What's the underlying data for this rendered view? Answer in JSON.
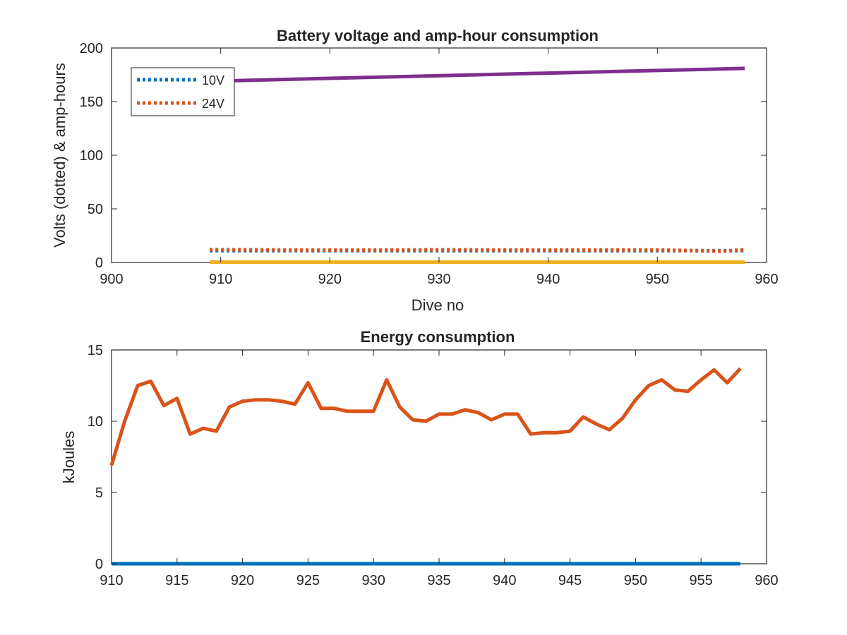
{
  "chart_data": [
    {
      "type": "line",
      "title": "Battery voltage and amp-hour consumption",
      "xlabel": "Dive no",
      "ylabel": "Volts (dotted) & amp-hours",
      "xlim": [
        900,
        960
      ],
      "ylim": [
        0,
        200
      ],
      "xticks": [
        900,
        910,
        920,
        930,
        940,
        950,
        960
      ],
      "yticks": [
        0,
        50,
        100,
        150,
        200
      ],
      "grid": false,
      "legend": "top-left",
      "series": [
        {
          "name": "10V",
          "style": "dotted",
          "color": "#0072BD",
          "x": [
            909,
            958
          ],
          "y": [
            11,
            11
          ]
        },
        {
          "name": "24V",
          "style": "dotted",
          "color": "#D95319",
          "x": [
            909,
            920,
            930,
            940,
            950,
            956,
            958
          ],
          "y": [
            12,
            11.5,
            11.8,
            11.6,
            11.7,
            10.5,
            12
          ]
        },
        {
          "style": "solid",
          "color": "#EDB120",
          "x": [
            909,
            958
          ],
          "y": [
            0.3,
            0.3
          ]
        },
        {
          "style": "solid",
          "color": "#7E2F8E",
          "x": [
            909,
            958
          ],
          "y": [
            169,
            181
          ]
        }
      ]
    },
    {
      "type": "line",
      "title": "Energy consumption",
      "xlabel": "",
      "ylabel": "kJoules",
      "xlim": [
        910,
        960
      ],
      "ylim": [
        0,
        15
      ],
      "xticks": [
        910,
        915,
        920,
        925,
        930,
        935,
        940,
        945,
        950,
        955,
        960
      ],
      "yticks": [
        0,
        5,
        10,
        15
      ],
      "grid": false,
      "series": [
        {
          "style": "solid",
          "color": "#0072BD",
          "x": [
            910,
            958
          ],
          "y": [
            0,
            0
          ]
        },
        {
          "style": "solid",
          "color": "#D95319",
          "x": [
            910,
            911,
            912,
            913,
            914,
            915,
            916,
            917,
            918,
            919,
            920,
            921,
            922,
            923,
            924,
            925,
            926,
            927,
            928,
            929,
            930,
            931,
            932,
            933,
            934,
            935,
            936,
            937,
            938,
            939,
            940,
            941,
            942,
            943,
            944,
            945,
            946,
            947,
            948,
            949,
            950,
            951,
            952,
            953,
            954,
            955,
            956,
            957,
            958
          ],
          "y": [
            6.9,
            10.0,
            12.5,
            12.8,
            11.1,
            11.6,
            9.1,
            9.5,
            9.3,
            11.0,
            11.4,
            11.5,
            11.5,
            11.4,
            11.2,
            12.7,
            10.9,
            10.9,
            10.7,
            10.7,
            10.7,
            12.9,
            11.0,
            10.1,
            10.0,
            10.5,
            10.5,
            10.8,
            10.6,
            10.1,
            10.5,
            10.5,
            9.1,
            9.2,
            9.2,
            9.3,
            10.3,
            9.8,
            9.4,
            10.2,
            11.5,
            12.5,
            12.9,
            12.2,
            12.1,
            12.9,
            13.6,
            12.7,
            13.7
          ]
        }
      ]
    }
  ]
}
